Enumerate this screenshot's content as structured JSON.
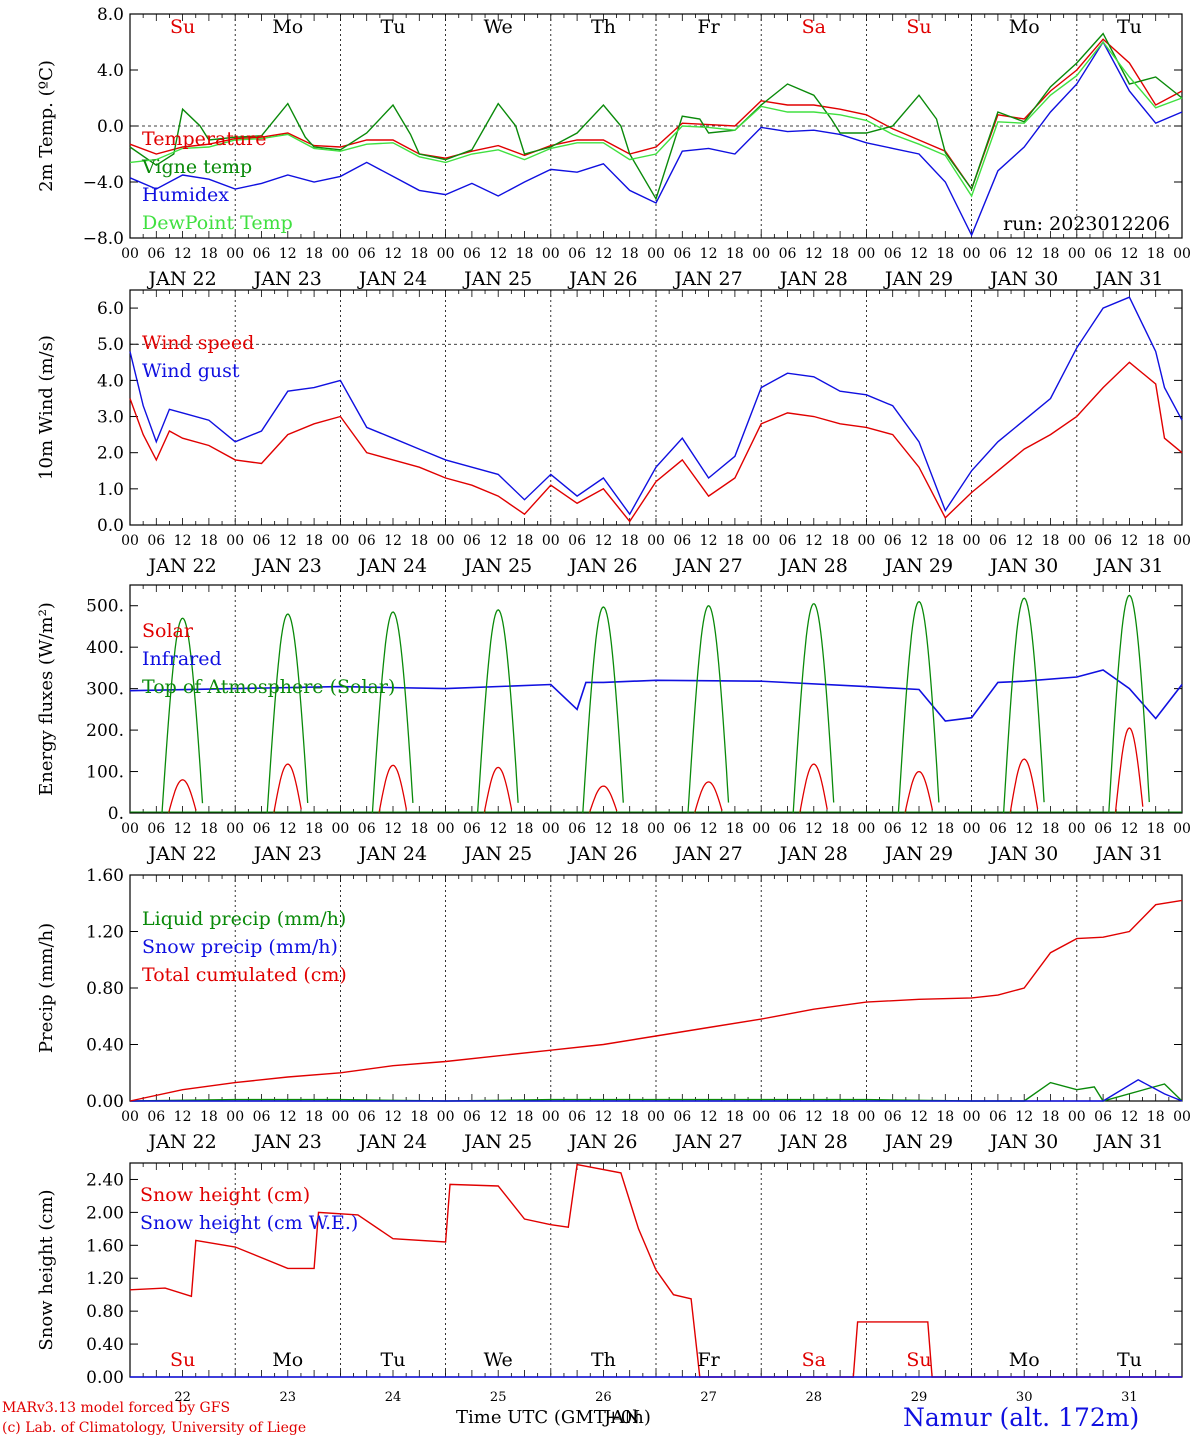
{
  "footer": {
    "model": "MARv3.13 model forced by GFS",
    "credit": "(c) Lab. of Climatology, University of Liege",
    "xlabel": "Time UTC (GMT+0h)",
    "overlay": "JAN",
    "station": "Namur (alt. 172m)"
  },
  "days": {
    "weekday_labels": [
      "Su",
      "Mo",
      "Tu",
      "We",
      "Th",
      "Fr",
      "Sa",
      "Su",
      "Mo",
      "Tu"
    ],
    "weekday_colors": [
      "#e00000",
      "#000000",
      "#000000",
      "#000000",
      "#000000",
      "#000000",
      "#e00000",
      "#e00000",
      "#000000",
      "#000000"
    ],
    "date_labels": [
      "JAN 22",
      "JAN 23",
      "JAN 24",
      "JAN 25",
      "JAN 26",
      "JAN 27",
      "JAN 28",
      "JAN 29",
      "JAN 30",
      "JAN 31"
    ],
    "day_numbers": [
      "22",
      "23",
      "24",
      "25",
      "26",
      "27",
      "28",
      "29",
      "30",
      "31"
    ],
    "hour_ticks": [
      "00",
      "06",
      "12",
      "18"
    ],
    "final_tick": "00"
  },
  "chart_data": [
    {
      "type": "line",
      "ylabel": "2m Temp. (ºC)",
      "ylim": [
        -8,
        8
      ],
      "yticks": [
        "−8.0",
        "−4.0",
        "0.0",
        "4.0",
        "8.0"
      ],
      "ytick_values": [
        -8,
        -4,
        0,
        4,
        8
      ],
      "dashed_level": 0,
      "x_unit": "hours since JAN 22 00 UTC",
      "annotation": "run: 2023012206",
      "series": [
        {
          "name": "Temperature",
          "color": "#e00000",
          "x": [
            0,
            6,
            12,
            18,
            24,
            30,
            36,
            42,
            48,
            54,
            60,
            66,
            72,
            78,
            84,
            90,
            96,
            102,
            108,
            114,
            120,
            126,
            132,
            138,
            144,
            150,
            156,
            162,
            168,
            174,
            180,
            186,
            192,
            198,
            204,
            210,
            216,
            222,
            228,
            234,
            240
          ],
          "y": [
            -1.3,
            -2.0,
            -1.5,
            -1.3,
            -0.9,
            -0.8,
            -0.5,
            -1.4,
            -1.5,
            -1.0,
            -1.0,
            -2.0,
            -2.3,
            -1.8,
            -1.4,
            -2.1,
            -1.4,
            -1.0,
            -1.0,
            -2.0,
            -1.5,
            0.2,
            0.1,
            0.0,
            1.8,
            1.5,
            1.5,
            1.2,
            0.8,
            -0.2,
            -1.0,
            -1.8,
            -4.5,
            0.8,
            0.5,
            2.5,
            4.0,
            6.2,
            4.5,
            1.5,
            2.5
          ]
        },
        {
          "name": "Vigne temp",
          "color": "#0a8a0a",
          "x": [
            0,
            6,
            10,
            12,
            16,
            18,
            24,
            30,
            36,
            40,
            42,
            48,
            54,
            60,
            64,
            66,
            72,
            78,
            84,
            88,
            90,
            96,
            102,
            108,
            112,
            114,
            120,
            126,
            130,
            132,
            138,
            144,
            150,
            156,
            160,
            162,
            168,
            174,
            180,
            184,
            186,
            192,
            198,
            204,
            210,
            216,
            222,
            228,
            234,
            240
          ],
          "y": [
            -1.5,
            -2.8,
            -2.0,
            1.2,
            0.0,
            -1.0,
            -0.8,
            -0.7,
            1.6,
            -0.8,
            -1.5,
            -1.7,
            -0.5,
            1.5,
            -0.6,
            -2.0,
            -2.4,
            -1.7,
            1.6,
            0.0,
            -2.0,
            -1.5,
            -0.5,
            1.5,
            0.0,
            -2.0,
            -5.2,
            0.7,
            0.5,
            -0.5,
            -0.3,
            1.5,
            3.0,
            2.2,
            0.5,
            -0.5,
            -0.5,
            0.0,
            2.2,
            0.5,
            -1.9,
            -4.5,
            1.0,
            0.3,
            2.8,
            4.5,
            6.6,
            3.0,
            3.5,
            2.0
          ]
        },
        {
          "name": "Humidex",
          "color": "#1010e0",
          "x": [
            0,
            6,
            12,
            18,
            24,
            30,
            36,
            42,
            48,
            54,
            60,
            66,
            72,
            78,
            84,
            90,
            96,
            102,
            108,
            114,
            120,
            126,
            132,
            138,
            144,
            150,
            156,
            162,
            168,
            174,
            180,
            186,
            192,
            198,
            204,
            210,
            216,
            222,
            228,
            234,
            240
          ],
          "y": [
            -3.7,
            -4.5,
            -3.5,
            -3.8,
            -4.5,
            -4.1,
            -3.5,
            -4.0,
            -3.6,
            -2.6,
            -3.6,
            -4.6,
            -4.9,
            -4.1,
            -5.0,
            -4.0,
            -3.1,
            -3.3,
            -2.7,
            -4.6,
            -5.5,
            -1.8,
            -1.6,
            -2.0,
            -0.1,
            -0.4,
            -0.3,
            -0.6,
            -1.2,
            -1.6,
            -2.0,
            -4.0,
            -7.8,
            -3.2,
            -1.5,
            1.0,
            3.0,
            6.0,
            2.5,
            0.2,
            1.0
          ]
        },
        {
          "name": "DewPoint Temp",
          "color": "#40e040",
          "x": [
            0,
            6,
            12,
            18,
            24,
            30,
            36,
            42,
            48,
            54,
            60,
            66,
            72,
            78,
            84,
            90,
            96,
            102,
            108,
            114,
            120,
            126,
            132,
            138,
            144,
            150,
            156,
            162,
            168,
            174,
            180,
            186,
            192,
            198,
            204,
            210,
            216,
            222,
            228,
            234,
            240
          ],
          "y": [
            -2.6,
            -2.4,
            -1.6,
            -1.5,
            -1.0,
            -0.9,
            -0.6,
            -1.6,
            -1.8,
            -1.3,
            -1.2,
            -2.2,
            -2.6,
            -2.0,
            -1.7,
            -2.4,
            -1.6,
            -1.2,
            -1.2,
            -2.4,
            -2.0,
            0.0,
            -0.1,
            -0.3,
            1.4,
            1.0,
            1.0,
            0.8,
            0.4,
            -0.6,
            -1.3,
            -2.1,
            -5.0,
            0.3,
            0.2,
            2.2,
            3.6,
            6.0,
            3.5,
            1.3,
            2.0
          ]
        }
      ]
    },
    {
      "type": "line",
      "ylabel": "10m Wind (m/s)",
      "ylim": [
        0,
        6.5
      ],
      "yticks": [
        "0.0",
        "1.0",
        "2.0",
        "3.0",
        "4.0",
        "5.0",
        "6.0"
      ],
      "ytick_values": [
        0,
        1,
        2,
        3,
        4,
        5,
        6
      ],
      "dashed_level": 5,
      "x_unit": "hours since JAN 22 00 UTC",
      "series": [
        {
          "name": "Wind speed",
          "color": "#e00000",
          "x": [
            0,
            3,
            6,
            9,
            12,
            18,
            24,
            30,
            36,
            42,
            48,
            54,
            60,
            66,
            72,
            78,
            84,
            90,
            96,
            102,
            108,
            114,
            120,
            126,
            132,
            138,
            144,
            150,
            156,
            162,
            168,
            174,
            180,
            186,
            192,
            198,
            204,
            210,
            216,
            222,
            228,
            234,
            236,
            240
          ],
          "y": [
            3.5,
            2.5,
            1.8,
            2.6,
            2.4,
            2.2,
            1.8,
            1.7,
            2.5,
            2.8,
            3.0,
            2.0,
            1.8,
            1.6,
            1.3,
            1.1,
            0.8,
            0.3,
            1.1,
            0.6,
            1.0,
            0.1,
            1.2,
            1.8,
            0.8,
            1.3,
            2.8,
            3.1,
            3.0,
            2.8,
            2.7,
            2.5,
            1.6,
            0.2,
            0.9,
            1.5,
            2.1,
            2.5,
            3.0,
            3.8,
            4.5,
            3.9,
            2.4,
            2.0
          ]
        },
        {
          "name": "Wind gust",
          "color": "#1010e0",
          "x": [
            0,
            3,
            6,
            9,
            12,
            18,
            24,
            30,
            36,
            42,
            48,
            54,
            60,
            66,
            72,
            78,
            84,
            90,
            96,
            102,
            108,
            114,
            120,
            126,
            132,
            138,
            144,
            150,
            156,
            162,
            168,
            174,
            180,
            186,
            192,
            198,
            204,
            210,
            216,
            222,
            228,
            234,
            236,
            240
          ],
          "y": [
            4.8,
            3.3,
            2.3,
            3.2,
            3.1,
            2.9,
            2.3,
            2.6,
            3.7,
            3.8,
            4.0,
            2.7,
            2.4,
            2.1,
            1.8,
            1.6,
            1.4,
            0.7,
            1.4,
            0.8,
            1.3,
            0.3,
            1.6,
            2.4,
            1.3,
            1.9,
            3.8,
            4.2,
            4.1,
            3.7,
            3.6,
            3.3,
            2.3,
            0.4,
            1.5,
            2.3,
            2.9,
            3.5,
            4.9,
            6.0,
            6.3,
            4.8,
            3.8,
            2.9
          ]
        }
      ]
    },
    {
      "type": "line",
      "ylabel": "Energy fluxes (W/m²)",
      "ylim": [
        0,
        550
      ],
      "yticks": [
        "0.",
        "100.",
        "200.",
        "300.",
        "400.",
        "500."
      ],
      "ytick_values": [
        0,
        100,
        200,
        300,
        400,
        500
      ],
      "x_unit": "hours since JAN 22 00 UTC",
      "series": [
        {
          "name": "Solar",
          "color": "#e00000",
          "peaks": [
            80,
            118,
            115,
            110,
            65,
            75,
            118,
            100,
            130,
            205
          ]
        },
        {
          "name": "Infrared",
          "color": "#1010e0",
          "x": [
            0,
            24,
            48,
            72,
            96,
            102,
            104,
            108,
            120,
            144,
            168,
            180,
            186,
            192,
            198,
            204,
            216,
            222,
            228,
            234,
            240
          ],
          "y": [
            295,
            300,
            305,
            300,
            310,
            250,
            315,
            315,
            320,
            318,
            305,
            298,
            222,
            230,
            315,
            318,
            328,
            345,
            300,
            228,
            310
          ]
        },
        {
          "name": "Top of Atmosphere (Solar)",
          "color": "#0a8a0a",
          "peaks": [
            470,
            480,
            485,
            490,
            497,
            500,
            505,
            510,
            518,
            525
          ]
        }
      ]
    },
    {
      "type": "line",
      "ylabel": "Precip (mm/h)",
      "ylim": [
        0,
        1.6
      ],
      "yticks": [
        "0.00",
        "0.40",
        "0.80",
        "1.20",
        "1.60"
      ],
      "ytick_values": [
        0,
        0.4,
        0.8,
        1.2,
        1.6
      ],
      "x_unit": "hours since JAN 22 00 UTC",
      "series": [
        {
          "name": "Liquid precip (mm/h)",
          "color": "#0a8a0a",
          "x": [
            0,
            24,
            48,
            72,
            96,
            120,
            144,
            168,
            192,
            204,
            210,
            216,
            220,
            222,
            236,
            240
          ],
          "y": [
            0.0,
            0.01,
            0.01,
            0.0,
            0.01,
            0.01,
            0.01,
            0.01,
            0.0,
            0.0,
            0.13,
            0.08,
            0.1,
            0.0,
            0.12,
            0.0
          ]
        },
        {
          "name": "Snow precip (mm/h)",
          "color": "#1010e0",
          "x": [
            0,
            24,
            48,
            72,
            96,
            120,
            144,
            168,
            192,
            216,
            222,
            230,
            236,
            240
          ],
          "y": [
            0.0,
            0.0,
            0.0,
            0.0,
            0.0,
            0.0,
            0.0,
            0.0,
            0.0,
            0.0,
            0.0,
            0.15,
            0.05,
            0.0
          ]
        },
        {
          "name": "Total cumulated (cm)",
          "color": "#e00000",
          "x": [
            0,
            12,
            24,
            36,
            48,
            60,
            72,
            84,
            96,
            108,
            120,
            132,
            144,
            156,
            168,
            180,
            192,
            198,
            204,
            210,
            216,
            222,
            228,
            234,
            240
          ],
          "y": [
            0.0,
            0.08,
            0.13,
            0.17,
            0.2,
            0.25,
            0.28,
            0.32,
            0.36,
            0.4,
            0.46,
            0.52,
            0.58,
            0.65,
            0.7,
            0.72,
            0.73,
            0.75,
            0.8,
            1.05,
            1.15,
            1.16,
            1.2,
            1.39,
            1.42
          ]
        }
      ]
    },
    {
      "type": "line",
      "ylabel": "Snow height (cm)",
      "ylim": [
        0,
        2.6
      ],
      "yticks": [
        "0.00",
        "0.40",
        "0.80",
        "1.20",
        "1.60",
        "2.00",
        "2.40"
      ],
      "ytick_values": [
        0,
        0.4,
        0.8,
        1.2,
        1.6,
        2.0,
        2.4
      ],
      "x_unit": "hours since JAN 22 00 UTC",
      "series": [
        {
          "name": "Snow height (cm)",
          "color": "#e00000",
          "x": [
            0,
            8,
            14,
            15,
            24,
            36,
            42,
            43,
            52,
            60,
            72,
            73,
            84,
            90,
            96,
            100,
            102,
            112,
            116,
            120,
            124,
            128,
            130,
            150,
            151,
            165,
            166,
            182,
            183,
            240
          ],
          "y": [
            1.06,
            1.08,
            0.98,
            1.66,
            1.58,
            1.32,
            1.32,
            2.0,
            1.97,
            1.68,
            1.64,
            2.34,
            2.32,
            1.92,
            1.85,
            1.82,
            2.58,
            2.48,
            1.8,
            1.3,
            1.0,
            0.95,
            0.0,
            0.0,
            0.0,
            0.0,
            0.67,
            0.67,
            0.0,
            0.0
          ]
        },
        {
          "name": "Snow height (cm W.E.)",
          "color": "#1010e0",
          "x": [
            0,
            240
          ],
          "y": [
            0.0,
            0.0
          ]
        }
      ]
    }
  ]
}
